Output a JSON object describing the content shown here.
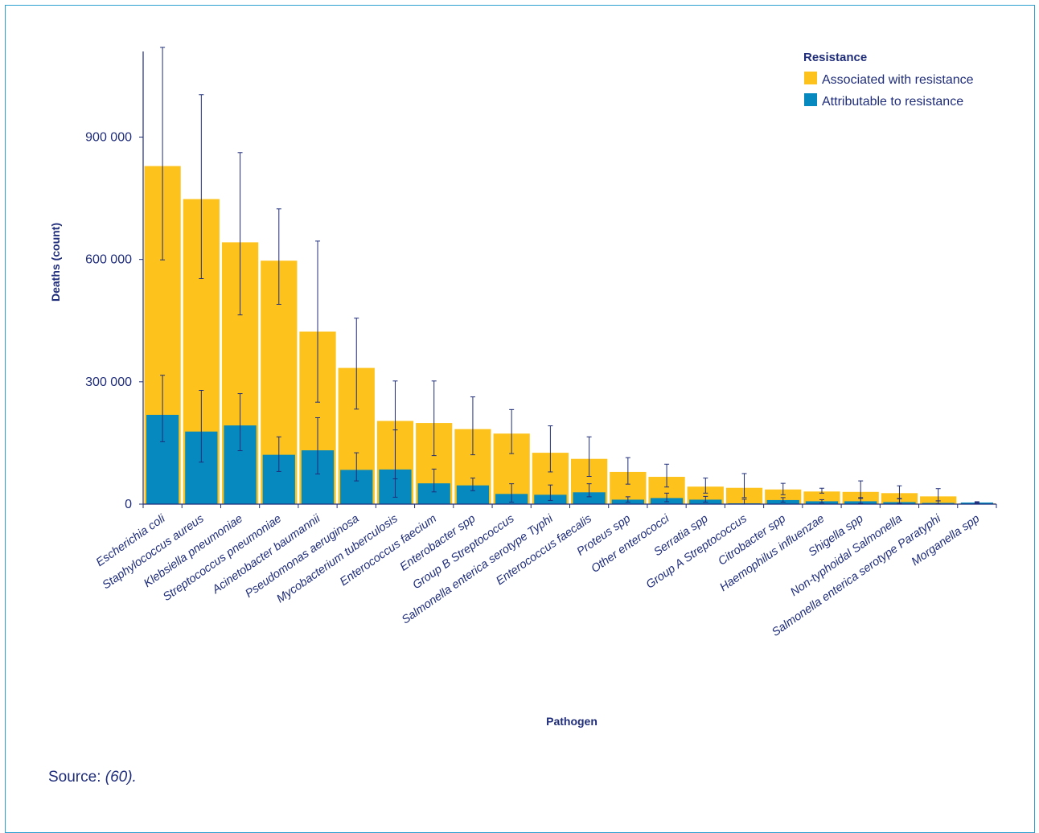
{
  "chart_data": {
    "type": "bar",
    "xlabel": "Pathogen",
    "ylabel": "Deaths (count)",
    "ylim": [
      0,
      1110000
    ],
    "yticks": [
      0,
      300000,
      600000,
      900000
    ],
    "ytick_labels": [
      "0",
      "300 000",
      "600 000",
      "900 000"
    ],
    "legend_title": "Resistance",
    "legend_position": "top-right",
    "categories": [
      "Escherichia coli",
      "Staphylococcus aureus",
      "Klebsiella pneumoniae",
      "Streptococcus pneumoniae",
      "Acinetobacter baumannii",
      "Pseudomonas aeruginosa",
      "Mycobacterium tuberculosis",
      "Enterococcus faecium",
      "Enterobacter spp",
      "Group B Streptococcus",
      "Salmonella enterica serotype Typhi",
      "Enterococcus faecalis",
      "Proteus spp",
      "Other enterococci",
      "Serratia spp",
      "Group A Streptococcus",
      "Citrobacter spp",
      "Haemophilus influenzae",
      "Shigella spp",
      "Non-typhoidal Salmonella",
      "Salmonella enterica serotype Paratyphi",
      "Morganella spp"
    ],
    "series": [
      {
        "name": "Associated with resistance",
        "color": "#fdc31c",
        "values": [
          829000,
          748000,
          642000,
          597000,
          423000,
          334000,
          204000,
          199000,
          184000,
          173000,
          126000,
          111000,
          79000,
          67000,
          43000,
          40000,
          36000,
          31000,
          30000,
          27000,
          19000,
          2000
        ],
        "err_low": [
          599000,
          553000,
          464000,
          490000,
          250000,
          233000,
          17000,
          119000,
          121000,
          124000,
          79000,
          68000,
          49000,
          42000,
          27000,
          16000,
          23000,
          27000,
          14000,
          14000,
          8000,
          1000
        ],
        "err_high": [
          1120000,
          1004000,
          862000,
          724000,
          645000,
          456000,
          302000,
          302000,
          263000,
          232000,
          192000,
          165000,
          114000,
          98000,
          64000,
          75000,
          51000,
          39000,
          57000,
          45000,
          38000,
          4000
        ]
      },
      {
        "name": "Attributable to resistance",
        "color": "#0589bf",
        "values": [
          219000,
          178000,
          193000,
          121000,
          132000,
          84000,
          85000,
          51000,
          46000,
          25000,
          23000,
          29000,
          11000,
          15000,
          11000,
          2000,
          10000,
          7000,
          7000,
          5000,
          3000,
          4000
        ],
        "err_low": [
          153000,
          103000,
          131000,
          80000,
          74000,
          57000,
          62000,
          30000,
          33000,
          5000,
          9000,
          18000,
          5000,
          6000,
          5000,
          0,
          5000,
          3000,
          2000,
          2000,
          1000,
          2000
        ],
        "err_high": [
          316000,
          279000,
          271000,
          165000,
          212000,
          126000,
          182000,
          86000,
          64000,
          50000,
          47000,
          50000,
          18000,
          27000,
          19000,
          12000,
          16000,
          11000,
          16000,
          13000,
          8000,
          6000
        ]
      }
    ]
  },
  "source": {
    "label": "Source:",
    "ref": "(60)."
  }
}
